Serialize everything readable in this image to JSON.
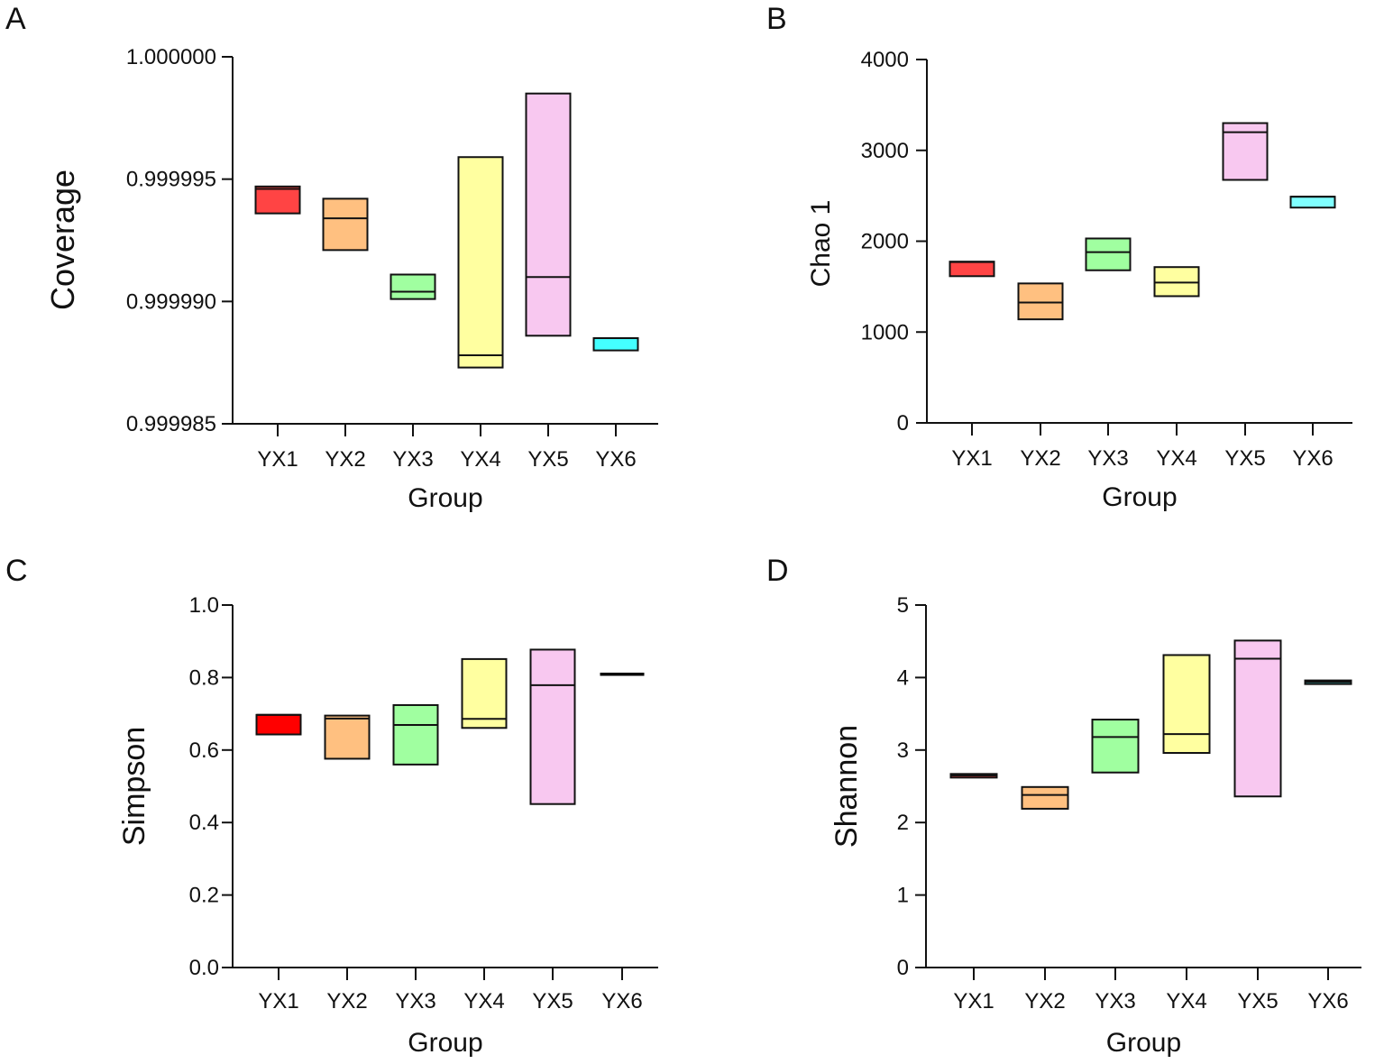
{
  "chart_data": [
    {
      "panel": "A",
      "type": "box",
      "xlabel": "Group",
      "ylabel": "Coverage",
      "categories": [
        "YX1",
        "YX2",
        "YX3",
        "YX4",
        "YX5",
        "YX6"
      ],
      "ylim": [
        0.999985,
        1.0
      ],
      "yticks": [
        "0.999985",
        "0.999990",
        "0.999995",
        "1.000000"
      ],
      "colors": [
        "#ff4444",
        "#ffc080",
        "#a0ffa0",
        "#ffffa0",
        "#f8c8f0",
        "#44ffff"
      ],
      "boxes": [
        {
          "min": 0.9999936,
          "median": 0.9999946,
          "max": 0.9999947
        },
        {
          "min": 0.9999921,
          "median": 0.9999934,
          "max": 0.9999942
        },
        {
          "min": 0.9999901,
          "median": 0.9999904,
          "max": 0.9999911
        },
        {
          "min": 0.9999873,
          "median": 0.9999878,
          "max": 0.9999959
        },
        {
          "min": 0.9999886,
          "median": 0.999991,
          "max": 0.9999985
        },
        {
          "min": 0.999988,
          "median": 0.9999885,
          "max": 0.9999885
        }
      ]
    },
    {
      "panel": "B",
      "type": "box",
      "xlabel": "Group",
      "ylabel": "Chao 1",
      "categories": [
        "YX1",
        "YX2",
        "YX3",
        "YX4",
        "YX5",
        "YX6"
      ],
      "ylim": [
        0,
        4000
      ],
      "yticks": [
        "0",
        "1000",
        "2000",
        "3000",
        "4000"
      ],
      "colors": [
        "#ff4444",
        "#ffc080",
        "#a0ffa0",
        "#ffffa0",
        "#f8c8f0",
        "#80ffff"
      ],
      "boxes": [
        {
          "min": 1615,
          "median": 1770,
          "max": 1775
        },
        {
          "min": 1140,
          "median": 1325,
          "max": 1535
        },
        {
          "min": 1680,
          "median": 1880,
          "max": 2030
        },
        {
          "min": 1395,
          "median": 1545,
          "max": 1715
        },
        {
          "min": 2675,
          "median": 3200,
          "max": 3300
        },
        {
          "min": 2370,
          "median": 2490,
          "max": 2490
        }
      ]
    },
    {
      "panel": "C",
      "type": "box",
      "xlabel": "Group",
      "ylabel": "Simpson",
      "categories": [
        "YX1",
        "YX2",
        "YX3",
        "YX4",
        "YX5",
        "YX6"
      ],
      "ylim": [
        0,
        1.0
      ],
      "yticks": [
        "0.0",
        "0.2",
        "0.4",
        "0.6",
        "0.8",
        "1.0"
      ],
      "colors": [
        "#ff0000",
        "#ffc080",
        "#a0ffa0",
        "#ffffa0",
        "#f8c8f0",
        "#000000"
      ],
      "boxes": [
        {
          "min": 0.643,
          "median": 0.697,
          "max": 0.697
        },
        {
          "min": 0.576,
          "median": 0.687,
          "max": 0.695
        },
        {
          "min": 0.56,
          "median": 0.669,
          "max": 0.724
        },
        {
          "min": 0.661,
          "median": 0.686,
          "max": 0.851
        },
        {
          "min": 0.451,
          "median": 0.779,
          "max": 0.877
        },
        {
          "min": 0.809,
          "median": 0.809,
          "max": 0.809
        }
      ]
    },
    {
      "panel": "D",
      "type": "box",
      "xlabel": "Group",
      "ylabel": "Shannon",
      "categories": [
        "YX1",
        "YX2",
        "YX3",
        "YX4",
        "YX5",
        "YX6"
      ],
      "ylim": [
        0,
        5
      ],
      "yticks": [
        "0",
        "1",
        "2",
        "3",
        "4",
        "5"
      ],
      "colors": [
        "#ff4444",
        "#ffc080",
        "#a0ffa0",
        "#ffffa0",
        "#f8c8f0",
        "#40c0c0"
      ],
      "boxes": [
        {
          "min": 2.62,
          "median": 2.65,
          "max": 2.67
        },
        {
          "min": 2.19,
          "median": 2.38,
          "max": 2.49
        },
        {
          "min": 2.69,
          "median": 3.18,
          "max": 3.42
        },
        {
          "min": 2.96,
          "median": 3.22,
          "max": 4.31
        },
        {
          "min": 2.36,
          "median": 4.26,
          "max": 4.51
        },
        {
          "min": 3.91,
          "median": 3.94,
          "max": 3.96
        }
      ]
    }
  ]
}
